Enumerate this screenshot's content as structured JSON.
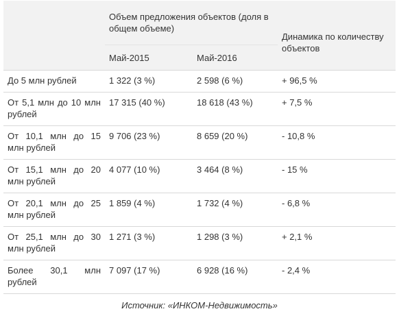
{
  "table": {
    "header_volume": "Объем предложения объектов (доля в общем объеме)",
    "header_dynamics": "Динамика по количеству объектов",
    "col_may2015": "Май-2015",
    "col_may2016": "Май-2016",
    "rows": [
      {
        "label": "До 5 млн рублей",
        "may2015": "1 322 (3 %)",
        "may2016": "2 598 (6 %)",
        "dynamics": "+ 96,5 %"
      },
      {
        "label": "От 5,1 млн до 10 млн рублей",
        "may2015": "17 315 (40 %)",
        "may2016": "18 618 (43 %)",
        "dynamics": "+ 7,5 %"
      },
      {
        "label": "От 10,1 млн до 15 млн рублей",
        "may2015": "9 706 (23 %)",
        "may2016": "8 659 (20 %)",
        "dynamics": "- 10,8 %"
      },
      {
        "label": "От 15,1 млн до 20 млн рублей",
        "may2015": "4 077 (10 %)",
        "may2016": "3 464 (8 %)",
        "dynamics": "- 15 %"
      },
      {
        "label": "От 20,1 млн до 25 млн рублей",
        "may2015": "1 859 (4 %)",
        "may2016": "1 732 (4 %)",
        "dynamics": "- 6,8 %"
      },
      {
        "label": "От 25,1 млн до 30 млн рублей",
        "may2015": "1 271 (3 %)",
        "may2016": "1 298 (3 %)",
        "dynamics": "+ 2,1 %"
      },
      {
        "label": "Более 30,1 млн рублей",
        "may2015": "7 097 (17 %)",
        "may2016": "6 928 (16 %)",
        "dynamics": "- 2,4 %"
      }
    ]
  },
  "caption": "Источник: «ИНКОМ-Недвижимость»"
}
